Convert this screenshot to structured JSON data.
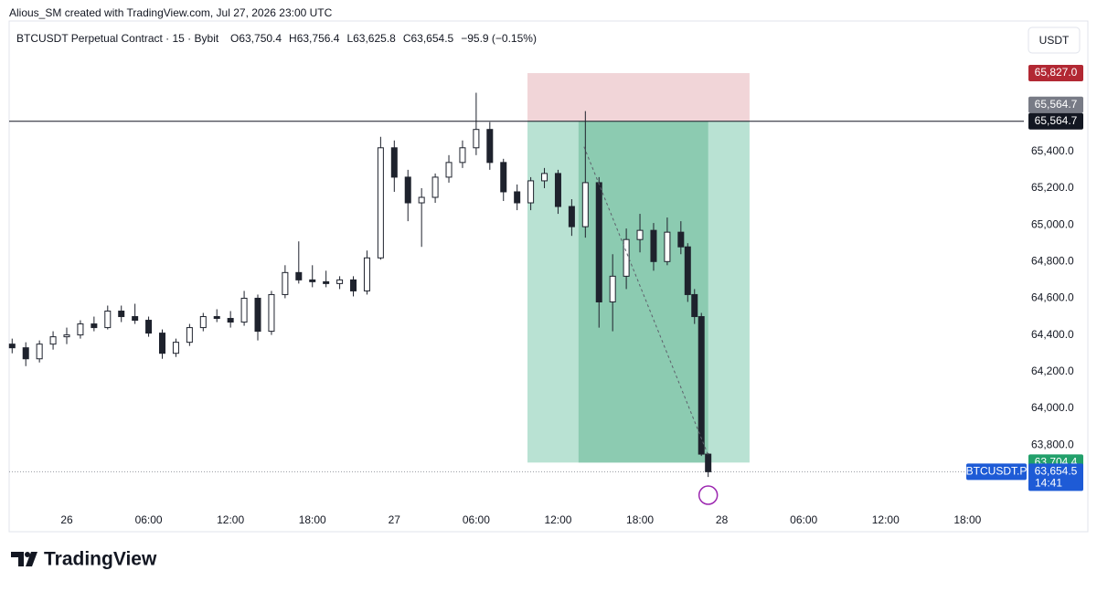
{
  "header": {
    "credit": "Alious_SM created with TradingView.com, Jul 27, 2026 23:00 UTC"
  },
  "watermark": "TradingView",
  "chart_data": {
    "type": "candlestick",
    "title": "BTCUSDT Perpetual Contract · 15 · Bybit",
    "ohlc_text": [
      "O63,750.4",
      "H63,756.4",
      "L63,625.8",
      "C63,654.5",
      "−95.9 (−0.15%)"
    ],
    "currency": "USDT",
    "x": [
      -4,
      -3,
      -2,
      -1,
      0,
      1,
      2,
      3,
      4,
      5,
      6,
      7,
      8,
      9,
      10,
      11,
      12,
      13,
      14,
      15,
      16,
      17,
      18,
      19,
      20,
      21,
      22,
      23,
      24,
      25,
      26,
      27,
      28,
      29,
      30,
      31,
      32,
      33,
      34,
      35,
      36,
      37,
      38,
      39,
      40,
      41,
      42,
      43,
      44,
      45,
      45.5,
      46,
      46.5,
      47
    ],
    "open": [
      64350,
      64330,
      64270,
      64350,
      64390,
      64400,
      64460,
      64440,
      64530,
      64500,
      64480,
      64410,
      64300,
      64360,
      64440,
      64500,
      64490,
      64470,
      64600,
      64420,
      64620,
      64740,
      64700,
      64690,
      64680,
      64700,
      64640,
      64820,
      65420,
      65260,
      65120,
      65150,
      65260,
      65340,
      65420,
      65520,
      65340,
      65180,
      65120,
      65240,
      65280,
      65100,
      64990,
      65230,
      64580,
      64720,
      64920,
      64970,
      64800,
      64960,
      64880,
      64620,
      64500,
      63750.4
    ],
    "high": [
      64380,
      64360,
      64370,
      64420,
      64440,
      64480,
      64500,
      64560,
      64560,
      64570,
      64500,
      64430,
      64380,
      64460,
      64520,
      64540,
      64530,
      64640,
      64620,
      64640,
      64780,
      64910,
      64780,
      64750,
      64720,
      64720,
      64860,
      65480,
      65460,
      65300,
      65200,
      65280,
      65380,
      65460,
      65720,
      65560,
      65360,
      65220,
      65260,
      65310,
      65300,
      65140,
      65620,
      65260,
      64840,
      64980,
      65060,
      65010,
      65040,
      65020,
      64900,
      64650,
      64520,
      63756.4
    ],
    "low": [
      64300,
      64230,
      64250,
      64320,
      64350,
      64380,
      64420,
      64430,
      64470,
      64460,
      64390,
      64270,
      64280,
      64340,
      64420,
      64470,
      64440,
      64450,
      64370,
      64400,
      64600,
      64680,
      64660,
      64660,
      64650,
      64610,
      64620,
      64810,
      65180,
      65020,
      64880,
      65120,
      65230,
      65310,
      65380,
      65300,
      65130,
      65080,
      65080,
      65200,
      65060,
      64940,
      64930,
      64440,
      64420,
      64650,
      64850,
      64750,
      64780,
      64840,
      64580,
      64460,
      63740,
      63625.8
    ],
    "close": [
      64330,
      64270,
      64350,
      64390,
      64400,
      64460,
      64440,
      64530,
      64500,
      64480,
      64410,
      64300,
      64360,
      64440,
      64500,
      64490,
      64470,
      64600,
      64420,
      64620,
      64740,
      64700,
      64690,
      64680,
      64700,
      64640,
      64820,
      65420,
      65260,
      65120,
      65150,
      65260,
      65340,
      65420,
      65520,
      65340,
      65180,
      65120,
      65240,
      65280,
      65100,
      64990,
      65230,
      64580,
      64720,
      64920,
      64970,
      64800,
      64960,
      64880,
      64620,
      64500,
      63750.4,
      63654.5
    ],
    "xlim": [
      -4.22,
      70.13
    ],
    "ylim": [
      63462,
      66111
    ],
    "xticks": [
      {
        "value": 0,
        "label": "26"
      },
      {
        "value": 6,
        "label": "06:00"
      },
      {
        "value": 12,
        "label": "12:00"
      },
      {
        "value": 18,
        "label": "18:00"
      },
      {
        "value": 24,
        "label": "27"
      },
      {
        "value": 30,
        "label": "06:00"
      },
      {
        "value": 36,
        "label": "12:00"
      },
      {
        "value": 42,
        "label": "18:00"
      },
      {
        "value": 48,
        "label": "28"
      },
      {
        "value": 54,
        "label": "06:00"
      },
      {
        "value": 60,
        "label": "12:00"
      },
      {
        "value": 66,
        "label": "18:00"
      }
    ],
    "yticks": [
      {
        "value": 63800,
        "label": "63,800.0"
      },
      {
        "value": 64000,
        "label": "64,000.0"
      },
      {
        "value": 64200,
        "label": "64,200.0"
      },
      {
        "value": 64400,
        "label": "64,400.0"
      },
      {
        "value": 64600,
        "label": "64,600.0"
      },
      {
        "value": 64800,
        "label": "64,800.0"
      },
      {
        "value": 65000,
        "label": "65,000.0"
      },
      {
        "value": 65200,
        "label": "65,200.0"
      },
      {
        "value": 65400,
        "label": "65,400.0"
      }
    ],
    "position": {
      "start": 33.76,
      "end": 50.03,
      "entry_time": 37.5,
      "exit_time": 47,
      "entry": {
        "value": 65564.7,
        "label": "65,564.7"
      },
      "stop": {
        "value": 65827.0,
        "label": "65,827.0"
      },
      "target": {
        "value": 63704.4,
        "label": "63,704.4"
      }
    },
    "last_price": {
      "value": 63654.5,
      "label": "63,654.5"
    },
    "symbol_tag": "BTCUSDT.P",
    "countdown": "14:41",
    "colors": {
      "up": "#ffffff",
      "down": "#1e222d",
      "wick": "#1e222d",
      "stop": "#f1d5d8",
      "target": "#b9e2d3",
      "target_active": "#8ccbb1",
      "stop_label": "#b22833",
      "target_label": "#22a06b",
      "last_label": "#1e5bd6"
    }
  }
}
